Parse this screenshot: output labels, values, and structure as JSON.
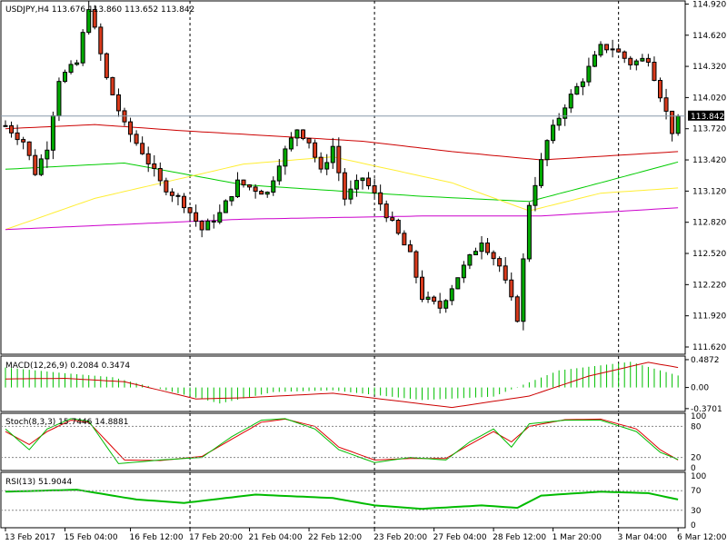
{
  "chart_data": {
    "type": "candlestick",
    "symbol": "USDJPY",
    "timeframe": "H4",
    "title": "USDJPY,H4  113.676 113.860 113.652 113.842",
    "last_ohlc": {
      "open": 113.676,
      "high": 113.86,
      "low": 113.652,
      "close": 113.842
    },
    "price_badge": "113.842",
    "ylim": [
      111.55,
      114.95
    ],
    "y_ticks": [
      "114.920",
      "114.620",
      "114.320",
      "114.020",
      "113.720",
      "113.420",
      "113.120",
      "112.820",
      "112.520",
      "112.220",
      "111.920",
      "111.620"
    ],
    "x_labels": [
      "13 Feb 2017",
      "15 Feb 04:00",
      "16 Feb 12:00",
      "17 Feb 20:00",
      "21 Feb 04:00",
      "22 Feb 12:00",
      "23 Feb 20:00",
      "27 Feb 04:00",
      "28 Feb 12:00",
      "1 Mar 20:00",
      "3 Mar 04:00",
      "6 Mar 12:00"
    ],
    "separators": [
      "17 Feb 20:00",
      "23 Feb 20:00",
      "3 Mar 04:00"
    ],
    "anchors": [
      {
        "t": 0,
        "v": 113.75
      },
      {
        "t": 3,
        "v": 113.6
      },
      {
        "t": 5,
        "v": 113.3
      },
      {
        "t": 7,
        "v": 113.55
      },
      {
        "t": 9,
        "v": 114.2
      },
      {
        "t": 12,
        "v": 114.35
      },
      {
        "t": 14,
        "v": 114.9
      },
      {
        "t": 17,
        "v": 114.2
      },
      {
        "t": 20,
        "v": 113.75
      },
      {
        "t": 23,
        "v": 113.5
      },
      {
        "t": 26,
        "v": 113.2
      },
      {
        "t": 30,
        "v": 113.0
      },
      {
        "t": 33,
        "v": 112.75
      },
      {
        "t": 36,
        "v": 112.9
      },
      {
        "t": 39,
        "v": 113.2
      },
      {
        "t": 44,
        "v": 113.1
      },
      {
        "t": 46,
        "v": 113.4
      },
      {
        "t": 49,
        "v": 113.72
      },
      {
        "t": 51,
        "v": 113.6
      },
      {
        "t": 53,
        "v": 113.3
      },
      {
        "t": 55,
        "v": 113.55
      },
      {
        "t": 57,
        "v": 113.05
      },
      {
        "t": 60,
        "v": 113.25
      },
      {
        "t": 63,
        "v": 113.0
      },
      {
        "t": 65,
        "v": 112.8
      },
      {
        "t": 68,
        "v": 112.5
      },
      {
        "t": 70,
        "v": 112.1
      },
      {
        "t": 73,
        "v": 112.0
      },
      {
        "t": 76,
        "v": 112.3
      },
      {
        "t": 80,
        "v": 112.65
      },
      {
        "t": 83,
        "v": 112.4
      },
      {
        "t": 86,
        "v": 111.9
      },
      {
        "t": 88,
        "v": 113.0
      },
      {
        "t": 91,
        "v": 113.6
      },
      {
        "t": 94,
        "v": 113.95
      },
      {
        "t": 97,
        "v": 114.2
      },
      {
        "t": 100,
        "v": 114.5
      },
      {
        "t": 102,
        "v": 114.5
      },
      {
        "t": 105,
        "v": 114.35
      },
      {
        "t": 108,
        "v": 114.4
      },
      {
        "t": 110,
        "v": 114.05
      },
      {
        "t": 112,
        "v": 113.7
      },
      {
        "t": 113,
        "v": 113.84
      }
    ],
    "moving_averages": [
      {
        "color": "#cc0000",
        "points": [
          {
            "t": 0,
            "v": 113.72
          },
          {
            "t": 15,
            "v": 113.76
          },
          {
            "t": 30,
            "v": 113.7
          },
          {
            "t": 60,
            "v": 113.6
          },
          {
            "t": 75,
            "v": 113.5
          },
          {
            "t": 90,
            "v": 113.42
          },
          {
            "t": 113,
            "v": 113.5
          }
        ]
      },
      {
        "color": "#00cc00",
        "points": [
          {
            "t": 0,
            "v": 113.33
          },
          {
            "t": 20,
            "v": 113.39
          },
          {
            "t": 40,
            "v": 113.18
          },
          {
            "t": 70,
            "v": 113.07
          },
          {
            "t": 88,
            "v": 113.02
          },
          {
            "t": 100,
            "v": 113.2
          },
          {
            "t": 113,
            "v": 113.4
          }
        ]
      },
      {
        "color": "#ffee33",
        "points": [
          {
            "t": 0,
            "v": 112.75
          },
          {
            "t": 15,
            "v": 113.05
          },
          {
            "t": 40,
            "v": 113.38
          },
          {
            "t": 55,
            "v": 113.45
          },
          {
            "t": 75,
            "v": 113.2
          },
          {
            "t": 88,
            "v": 112.93
          },
          {
            "t": 100,
            "v": 113.1
          },
          {
            "t": 113,
            "v": 113.15
          }
        ]
      },
      {
        "color": "#cc00cc",
        "points": [
          {
            "t": 0,
            "v": 112.75
          },
          {
            "t": 40,
            "v": 112.85
          },
          {
            "t": 70,
            "v": 112.88
          },
          {
            "t": 90,
            "v": 112.88
          },
          {
            "t": 113,
            "v": 112.96
          }
        ]
      }
    ],
    "macd": {
      "label": "MACD(12,26,9) 0.2084 0.3474",
      "ticks": [
        "0.4872",
        "0.00",
        "-0.3701"
      ],
      "ylim": [
        -0.42,
        0.55
      ],
      "hist": [
        {
          "t": 0,
          "v": 0.35
        },
        {
          "t": 10,
          "v": 0.25
        },
        {
          "t": 18,
          "v": 0.18
        },
        {
          "t": 27,
          "v": -0.05
        },
        {
          "t": 36,
          "v": -0.28
        },
        {
          "t": 45,
          "v": -0.08
        },
        {
          "t": 55,
          "v": -0.05
        },
        {
          "t": 70,
          "v": -0.22
        },
        {
          "t": 82,
          "v": -0.16
        },
        {
          "t": 93,
          "v": 0.3
        },
        {
          "t": 105,
          "v": 0.45
        },
        {
          "t": 113,
          "v": 0.21
        }
      ],
      "signal": [
        {
          "t": 0,
          "v": 0.15
        },
        {
          "t": 10,
          "v": 0.16
        },
        {
          "t": 20,
          "v": 0.1
        },
        {
          "t": 32,
          "v": -0.2
        },
        {
          "t": 40,
          "v": -0.18
        },
        {
          "t": 55,
          "v": -0.1
        },
        {
          "t": 75,
          "v": -0.35
        },
        {
          "t": 88,
          "v": -0.15
        },
        {
          "t": 98,
          "v": 0.2
        },
        {
          "t": 108,
          "v": 0.44
        },
        {
          "t": 113,
          "v": 0.35
        }
      ]
    },
    "stoch": {
      "label": "Stoch(8,3,3) 15.7446 14.8881",
      "ticks": [
        "100",
        "80",
        "20",
        "0"
      ],
      "ylim": [
        0,
        100
      ],
      "k": [
        {
          "t": 0,
          "v": 75
        },
        {
          "t": 4,
          "v": 35
        },
        {
          "t": 7,
          "v": 75
        },
        {
          "t": 11,
          "v": 95
        },
        {
          "t": 14,
          "v": 90
        },
        {
          "t": 19,
          "v": 8
        },
        {
          "t": 26,
          "v": 15
        },
        {
          "t": 33,
          "v": 20
        },
        {
          "t": 38,
          "v": 60
        },
        {
          "t": 43,
          "v": 92
        },
        {
          "t": 47,
          "v": 95
        },
        {
          "t": 52,
          "v": 75
        },
        {
          "t": 56,
          "v": 35
        },
        {
          "t": 62,
          "v": 10
        },
        {
          "t": 68,
          "v": 20
        },
        {
          "t": 74,
          "v": 15
        },
        {
          "t": 78,
          "v": 50
        },
        {
          "t": 82,
          "v": 75
        },
        {
          "t": 85,
          "v": 40
        },
        {
          "t": 88,
          "v": 85
        },
        {
          "t": 94,
          "v": 92
        },
        {
          "t": 100,
          "v": 92
        },
        {
          "t": 106,
          "v": 70
        },
        {
          "t": 110,
          "v": 30
        },
        {
          "t": 113,
          "v": 16
        }
      ],
      "d": [
        {
          "t": 0,
          "v": 70
        },
        {
          "t": 4,
          "v": 45
        },
        {
          "t": 7,
          "v": 70
        },
        {
          "t": 11,
          "v": 92
        },
        {
          "t": 14,
          "v": 88
        },
        {
          "t": 20,
          "v": 15
        },
        {
          "t": 26,
          "v": 14
        },
        {
          "t": 33,
          "v": 22
        },
        {
          "t": 38,
          "v": 55
        },
        {
          "t": 43,
          "v": 88
        },
        {
          "t": 47,
          "v": 94
        },
        {
          "t": 52,
          "v": 80
        },
        {
          "t": 56,
          "v": 40
        },
        {
          "t": 62,
          "v": 15
        },
        {
          "t": 68,
          "v": 18
        },
        {
          "t": 74,
          "v": 18
        },
        {
          "t": 78,
          "v": 45
        },
        {
          "t": 82,
          "v": 70
        },
        {
          "t": 85,
          "v": 50
        },
        {
          "t": 88,
          "v": 80
        },
        {
          "t": 94,
          "v": 93
        },
        {
          "t": 100,
          "v": 94
        },
        {
          "t": 106,
          "v": 75
        },
        {
          "t": 110,
          "v": 35
        },
        {
          "t": 113,
          "v": 15
        }
      ]
    },
    "rsi": {
      "label": "RSI(13) 51.9044",
      "ticks": [
        "100",
        "70",
        "30",
        "0"
      ],
      "ylim": [
        0,
        100
      ],
      "values": [
        {
          "t": 0,
          "v": 68
        },
        {
          "t": 12,
          "v": 72
        },
        {
          "t": 22,
          "v": 52
        },
        {
          "t": 30,
          "v": 45
        },
        {
          "t": 42,
          "v": 62
        },
        {
          "t": 55,
          "v": 55
        },
        {
          "t": 62,
          "v": 40
        },
        {
          "t": 70,
          "v": 33
        },
        {
          "t": 80,
          "v": 40
        },
        {
          "t": 86,
          "v": 35
        },
        {
          "t": 90,
          "v": 60
        },
        {
          "t": 100,
          "v": 68
        },
        {
          "t": 108,
          "v": 65
        },
        {
          "t": 113,
          "v": 52
        }
      ]
    }
  }
}
